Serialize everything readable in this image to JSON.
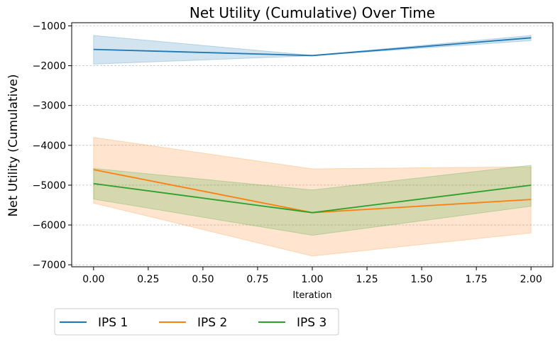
{
  "chart_data": {
    "type": "line",
    "title": "Net Utility (Cumulative) Over Time",
    "xlabel": "Iteration",
    "ylabel": "Net Utility (Cumulative)",
    "x": [
      0.0,
      1.0,
      2.0
    ],
    "xlim": [
      -0.1,
      2.1
    ],
    "ylim": [
      -7050,
      -920
    ],
    "xticks": [
      0.0,
      0.25,
      0.5,
      0.75,
      1.0,
      1.25,
      1.5,
      1.75,
      2.0
    ],
    "xtick_labels": [
      "0.00",
      "0.25",
      "0.50",
      "0.75",
      "1.00",
      "1.25",
      "1.50",
      "1.75",
      "2.00"
    ],
    "yticks": [
      -7000,
      -6000,
      -5000,
      -4000,
      -3000,
      -2000,
      -1000
    ],
    "ytick_labels": [
      "−7000",
      "−6000",
      "−5000",
      "−4000",
      "−3000",
      "−2000",
      "−1000"
    ],
    "grid": "horizontal dashed",
    "legend_position": "bottom-left outside",
    "series": [
      {
        "name": "IPS 1",
        "color": "#1f77b4",
        "values": [
          -1590,
          -1745,
          -1300
        ],
        "lower": [
          -1960,
          -1750,
          -1370
        ],
        "upper": [
          -1240,
          -1740,
          -1240
        ]
      },
      {
        "name": "IPS 2",
        "color": "#ff7f0e",
        "values": [
          -4610,
          -5690,
          -5360
        ],
        "lower": [
          -5450,
          -6780,
          -6200
        ],
        "upper": [
          -3800,
          -4590,
          -4540
        ]
      },
      {
        "name": "IPS 3",
        "color": "#2ca02c",
        "values": [
          -4960,
          -5690,
          -5000
        ],
        "lower": [
          -5350,
          -6260,
          -5530
        ],
        "upper": [
          -4580,
          -5120,
          -4500
        ]
      }
    ]
  }
}
